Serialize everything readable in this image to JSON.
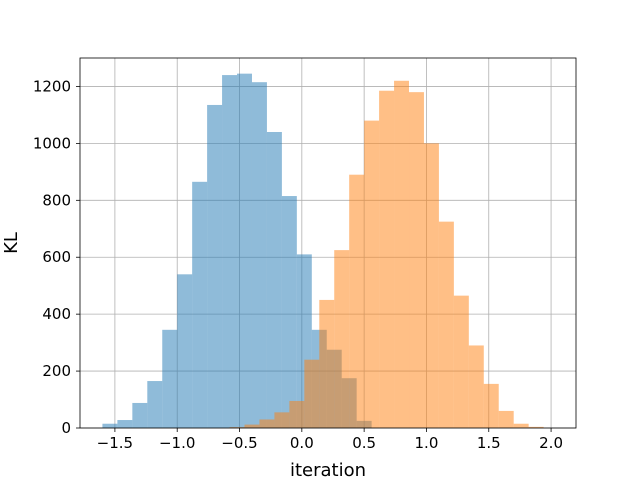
{
  "chart_data": {
    "type": "histogram",
    "title": "",
    "xlabel": "iteration",
    "ylabel": "KL",
    "xlim": [
      -1.78,
      2.2
    ],
    "ylim": [
      0,
      1300
    ],
    "grid": true,
    "xticks": [
      -1.5,
      -1.0,
      -0.5,
      0.0,
      0.5,
      1.0,
      1.5,
      2.0
    ],
    "xtick_labels": [
      "−1.5",
      "−1.0",
      "−0.5",
      "0.0",
      "0.5",
      "1.0",
      "1.5",
      "2.0"
    ],
    "yticks": [
      0,
      200,
      400,
      600,
      800,
      1000,
      1200
    ],
    "ytick_labels": [
      "0",
      "200",
      "400",
      "600",
      "800",
      "1000",
      "1200"
    ],
    "series": [
      {
        "color": "#1f77b4",
        "alpha": 0.5,
        "bin_edges": [
          -1.6,
          -1.48,
          -1.36,
          -1.24,
          -1.12,
          -1.0,
          -0.88,
          -0.76,
          -0.64,
          -0.52,
          -0.4,
          -0.28,
          -0.16,
          -0.04,
          0.08,
          0.2,
          0.32,
          0.44,
          0.56
        ],
        "counts": [
          15,
          28,
          88,
          165,
          345,
          540,
          865,
          1135,
          1240,
          1245,
          1215,
          1040,
          815,
          610,
          345,
          275,
          175,
          25
        ]
      },
      {
        "color": "#ff7f0e",
        "alpha": 0.5,
        "bin_edges": [
          -0.58,
          -0.46,
          -0.34,
          -0.22,
          -0.1,
          0.02,
          0.14,
          0.26,
          0.38,
          0.5,
          0.62,
          0.74,
          0.86,
          0.98,
          1.1,
          1.22,
          1.34,
          1.46,
          1.58,
          1.7,
          1.82,
          1.94
        ],
        "counts": [
          3,
          12,
          30,
          55,
          95,
          240,
          450,
          625,
          890,
          1080,
          1185,
          1220,
          1180,
          1000,
          725,
          465,
          290,
          155,
          60,
          15,
          4
        ]
      }
    ]
  }
}
